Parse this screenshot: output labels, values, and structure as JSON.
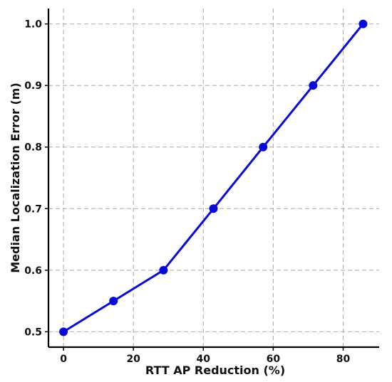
{
  "chart_data": {
    "type": "line",
    "title": "",
    "xlabel": "RTT AP Reduction (%)",
    "ylabel": "Median Localization Error (m)",
    "xlim": [
      -4.3,
      90.3
    ],
    "ylim": [
      0.475,
      1.025
    ],
    "xticks": [
      "0",
      "20",
      "40",
      "60",
      "80"
    ],
    "yticks": [
      "0.5",
      "0.6",
      "0.7",
      "0.8",
      "0.9",
      "1.0"
    ],
    "grid": true,
    "series": [
      {
        "color": "#0a0ad6",
        "marker": "circle",
        "x": [
          0,
          14.3,
          28.6,
          42.9,
          57.1,
          71.4,
          85.7
        ],
        "y": [
          0.5,
          0.55,
          0.6,
          0.7,
          0.8,
          0.9,
          1.0
        ]
      }
    ]
  }
}
